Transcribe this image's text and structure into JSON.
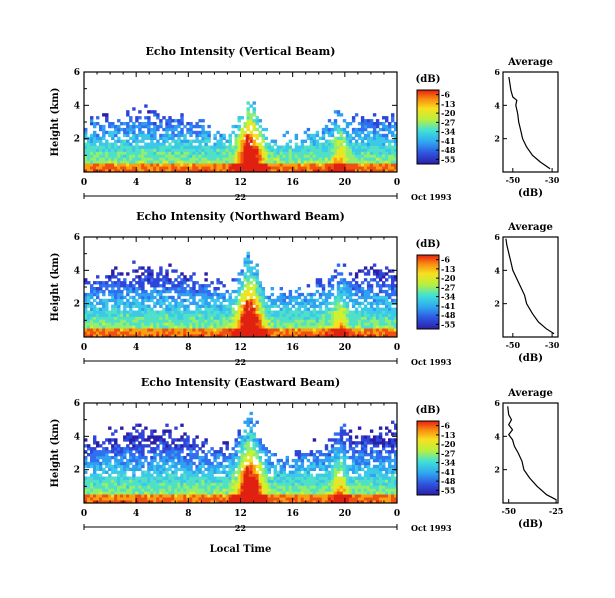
{
  "chart_data": [
    {
      "type": "heatmap",
      "title": "Echo Intensity (Vertical Beam)",
      "ylabel": "Height (km)",
      "yticks": [
        "2",
        "4",
        "6"
      ],
      "xticks": [
        "0",
        "4",
        "8",
        "12",
        "16",
        "20",
        "0"
      ],
      "date_marker": "22",
      "date_label": "Oct 1993",
      "ylim": [
        0,
        6
      ],
      "xlim": [
        0,
        24
      ],
      "colorbar": {
        "unit": "(dB)",
        "ticks": [
          "-6",
          "-13",
          "-20",
          "-27",
          "-34",
          "-41",
          "-48",
          "-55"
        ]
      },
      "profile": {
        "title": "Average",
        "xlabel": "(dB)",
        "xticks": [
          "-50",
          "-30"
        ],
        "yticks": [
          "2",
          "4",
          "6"
        ],
        "xlim": [
          -55,
          -27
        ],
        "ylim": [
          0,
          6
        ],
        "points": [
          [
            -31,
            0.2
          ],
          [
            -36,
            0.6
          ],
          [
            -40,
            1.0
          ],
          [
            -43,
            1.5
          ],
          [
            -45,
            2.0
          ],
          [
            -46,
            2.5
          ],
          [
            -47,
            3.0
          ],
          [
            -47.5,
            3.5
          ],
          [
            -48.5,
            4.0
          ],
          [
            -48,
            4.3
          ],
          [
            -50,
            4.5
          ],
          [
            -51,
            4.9
          ],
          [
            -51.5,
            5.3
          ],
          [
            -52,
            5.7
          ]
        ]
      }
    },
    {
      "type": "heatmap",
      "title": "Echo Intensity (Northward Beam)",
      "ylabel": "Height (km)",
      "yticks": [
        "2",
        "4",
        "6"
      ],
      "xticks": [
        "0",
        "4",
        "8",
        "12",
        "16",
        "20",
        "0"
      ],
      "date_marker": "22",
      "date_label": "Oct 1993",
      "ylim": [
        0,
        6
      ],
      "xlim": [
        0,
        24
      ],
      "colorbar": {
        "unit": "(dB)",
        "ticks": [
          "-6",
          "-13",
          "-20",
          "-27",
          "-34",
          "-41",
          "-48",
          "-55"
        ]
      },
      "profile": {
        "title": "Average",
        "xlabel": "(dB)",
        "xticks": [
          "-50",
          "-30"
        ],
        "yticks": [
          "2",
          "4",
          "6"
        ],
        "xlim": [
          -55,
          -27
        ],
        "ylim": [
          0,
          6
        ],
        "points": [
          [
            -29,
            0.2
          ],
          [
            -33,
            0.5
          ],
          [
            -37,
            0.9
          ],
          [
            -40,
            1.4
          ],
          [
            -43,
            2.0
          ],
          [
            -44,
            2.5
          ],
          [
            -46,
            3.0
          ],
          [
            -48,
            3.5
          ],
          [
            -50,
            4.0
          ],
          [
            -51,
            4.5
          ],
          [
            -52,
            5.0
          ],
          [
            -53,
            5.5
          ],
          [
            -53.5,
            5.9
          ]
        ]
      }
    },
    {
      "type": "heatmap",
      "title": "Echo Intensity (Eastward Beam)",
      "ylabel": "Height (km)",
      "yticks": [
        "2",
        "4",
        "6"
      ],
      "xticks": [
        "0",
        "4",
        "8",
        "12",
        "16",
        "20",
        "0"
      ],
      "date_marker": "22",
      "date_label": "Oct 1993",
      "xlabel": "Local Time",
      "ylim": [
        0,
        6
      ],
      "xlim": [
        0,
        24
      ],
      "colorbar": {
        "unit": "(dB)",
        "ticks": [
          "-6",
          "-13",
          "-20",
          "-27",
          "-34",
          "-41",
          "-48",
          "-55"
        ]
      },
      "profile": {
        "title": "Average",
        "xlabel": "(dB)",
        "xticks": [
          "-50",
          "-25"
        ],
        "yticks": [
          "2",
          "4",
          "6"
        ],
        "xlim": [
          -53,
          -24
        ],
        "ylim": [
          0,
          6
        ],
        "points": [
          [
            -25,
            0.2
          ],
          [
            -30,
            0.5
          ],
          [
            -35,
            1.0
          ],
          [
            -39,
            1.5
          ],
          [
            -42,
            2.0
          ],
          [
            -43,
            2.5
          ],
          [
            -45,
            3.0
          ],
          [
            -47,
            3.4
          ],
          [
            -48,
            3.8
          ],
          [
            -50,
            4.1
          ],
          [
            -48,
            4.4
          ],
          [
            -50,
            4.7
          ],
          [
            -48.5,
            5.0
          ],
          [
            -50,
            5.3
          ],
          [
            -50.5,
            5.8
          ]
        ]
      }
    }
  ]
}
